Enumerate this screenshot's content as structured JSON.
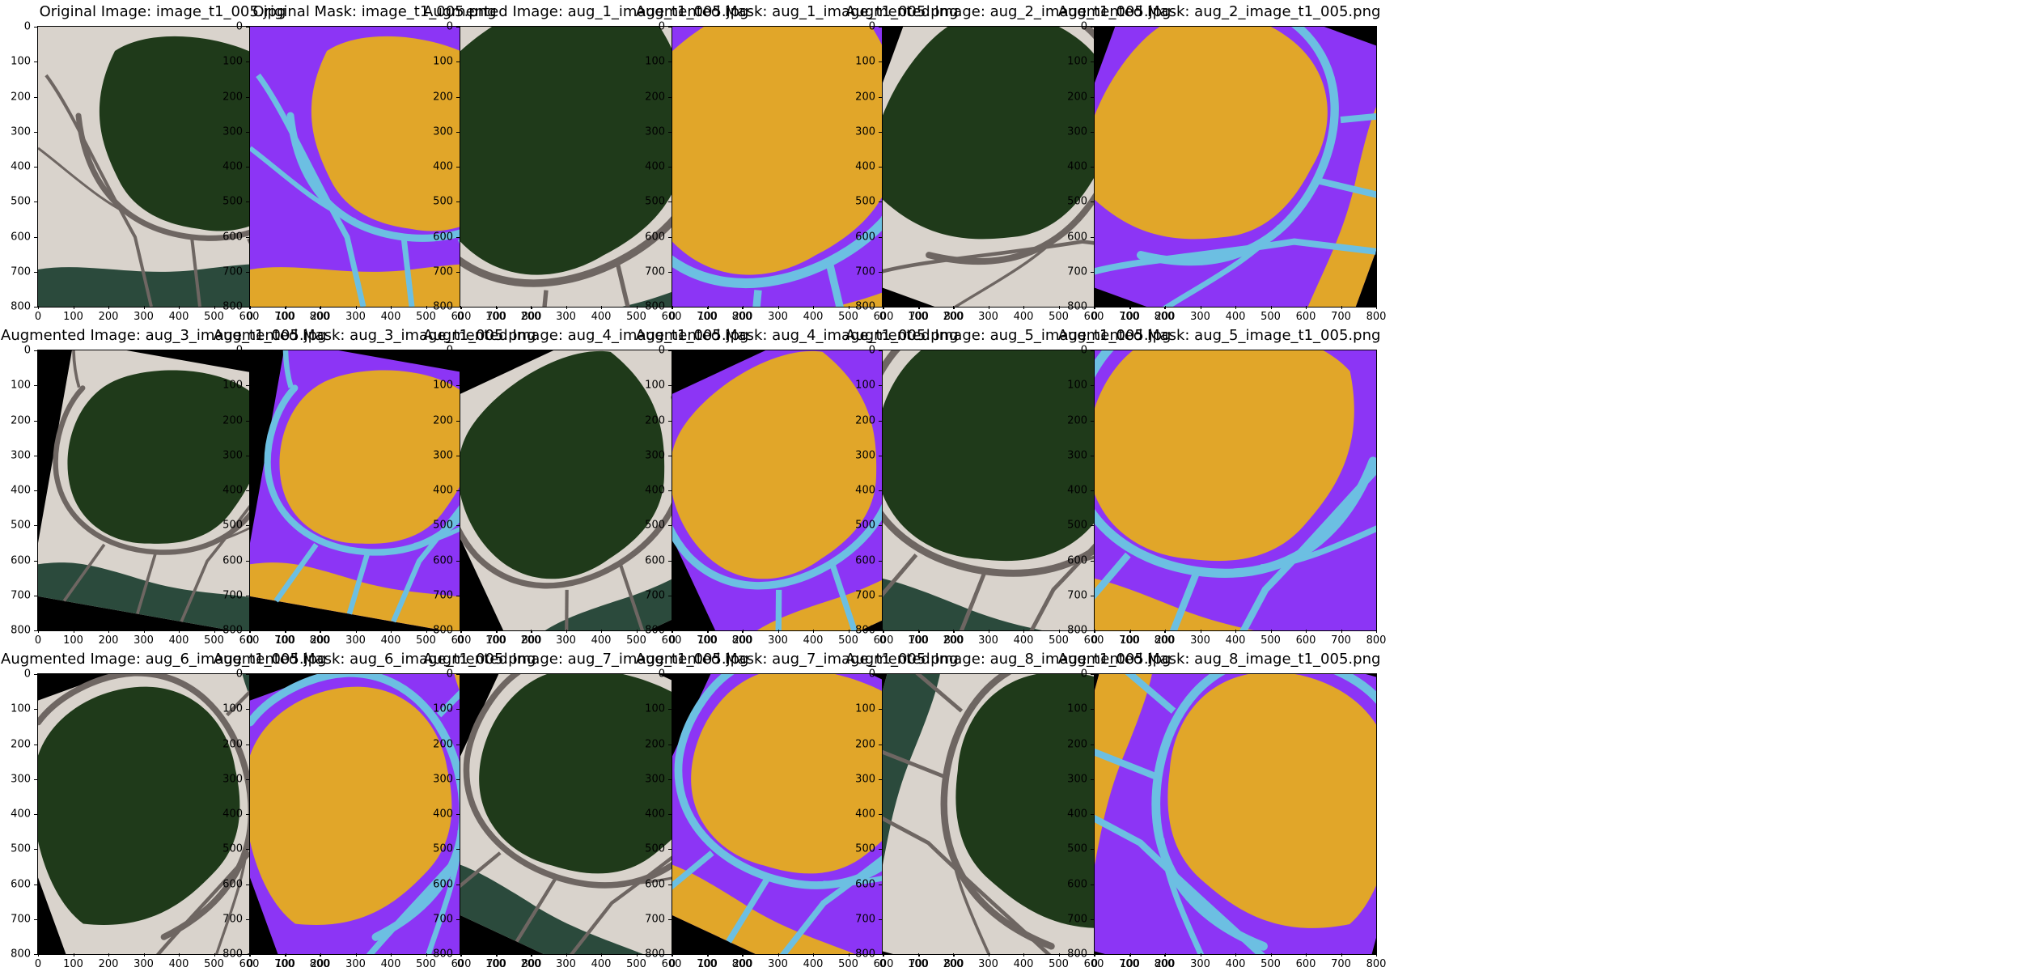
{
  "figure": {
    "panels": [
      {
        "kind": "image",
        "title": "Original Image: image_t1_005.jpg",
        "variant": 0
      },
      {
        "kind": "mask",
        "title": "Original Mask: image_t1_005.png",
        "variant": 0
      },
      {
        "kind": "image",
        "title": "Augmented Image: aug_1_image_t1_005.jpg",
        "variant": 1
      },
      {
        "kind": "mask",
        "title": "Augmented Mask: aug_1_image_t1_005.png",
        "variant": 1
      },
      {
        "kind": "image",
        "title": "Augmented Image: aug_2_image_t1_005.jpg",
        "variant": 2
      },
      {
        "kind": "mask",
        "title": "Augmented Mask: aug_2_image_t1_005.png",
        "variant": 2
      },
      {
        "kind": "image",
        "title": "Augmented Image: aug_3_image_t1_005.jpg",
        "variant": 3
      },
      {
        "kind": "mask",
        "title": "Augmented Mask: aug_3_image_t1_005.png",
        "variant": 3
      },
      {
        "kind": "image",
        "title": "Augmented Image: aug_4_image_t1_005.jpg",
        "variant": 4
      },
      {
        "kind": "mask",
        "title": "Augmented Mask: aug_4_image_t1_005.png",
        "variant": 4
      },
      {
        "kind": "image",
        "title": "Augmented Image: aug_5_image_t1_005.jpg",
        "variant": 5
      },
      {
        "kind": "mask",
        "title": "Augmented Mask: aug_5_image_t1_005.png",
        "variant": 5
      },
      {
        "kind": "image",
        "title": "Augmented Image: aug_6_image_t1_005.jpg",
        "variant": 6
      },
      {
        "kind": "mask",
        "title": "Augmented Mask: aug_6_image_t1_005.png",
        "variant": 6
      },
      {
        "kind": "image",
        "title": "Augmented Image: aug_7_image_t1_005.jpg",
        "variant": 7
      },
      {
        "kind": "mask",
        "title": "Augmented Mask: aug_7_image_t1_005.png",
        "variant": 7
      },
      {
        "kind": "image",
        "title": "Augmented Image: aug_8_image_t1_005.jpg",
        "variant": 8
      },
      {
        "kind": "mask",
        "title": "Augmented Mask: aug_8_image_t1_005.png",
        "variant": 8
      }
    ],
    "axis": {
      "x_ticks": [
        "0",
        "100",
        "200",
        "300",
        "400",
        "500",
        "600",
        "700",
        "800"
      ],
      "y_ticks": [
        "0",
        "100",
        "200",
        "300",
        "400",
        "500",
        "600",
        "700",
        "800"
      ],
      "range": [
        0,
        800
      ]
    },
    "colors": {
      "mask_water": "#e1a629",
      "mask_land": "#8c35f5",
      "mask_road": "#6cbfe2",
      "image_water": "#1f3a1a",
      "image_land": "#d9d3cc",
      "image_road": "#6e6662",
      "image_sea": "#2b4a3c",
      "background": "#000000"
    }
  }
}
